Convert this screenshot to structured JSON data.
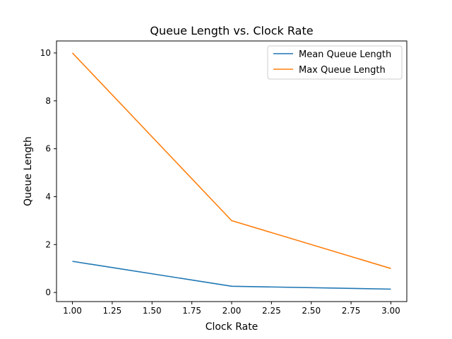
{
  "chart_data": {
    "type": "line",
    "title": "Queue Length vs. Clock Rate",
    "xlabel": "Clock Rate",
    "ylabel": "Queue Length",
    "x": [
      1.0,
      2.0,
      3.0
    ],
    "xlim": [
      0.9,
      3.1
    ],
    "ylim": [
      -0.38,
      10.5
    ],
    "xticks": [
      "1.00",
      "1.25",
      "1.50",
      "1.75",
      "2.00",
      "2.25",
      "2.50",
      "2.75",
      "3.00"
    ],
    "yticks": [
      "0",
      "2",
      "4",
      "6",
      "8",
      "10"
    ],
    "grid": false,
    "legend_position": "top-right",
    "series": [
      {
        "name": "Mean Queue Length",
        "values": [
          1.3,
          0.26,
          0.14
        ],
        "color": "#1f77b4"
      },
      {
        "name": "Max Queue Length",
        "values": [
          10,
          3,
          1
        ],
        "color": "#ff7f0e"
      }
    ]
  }
}
